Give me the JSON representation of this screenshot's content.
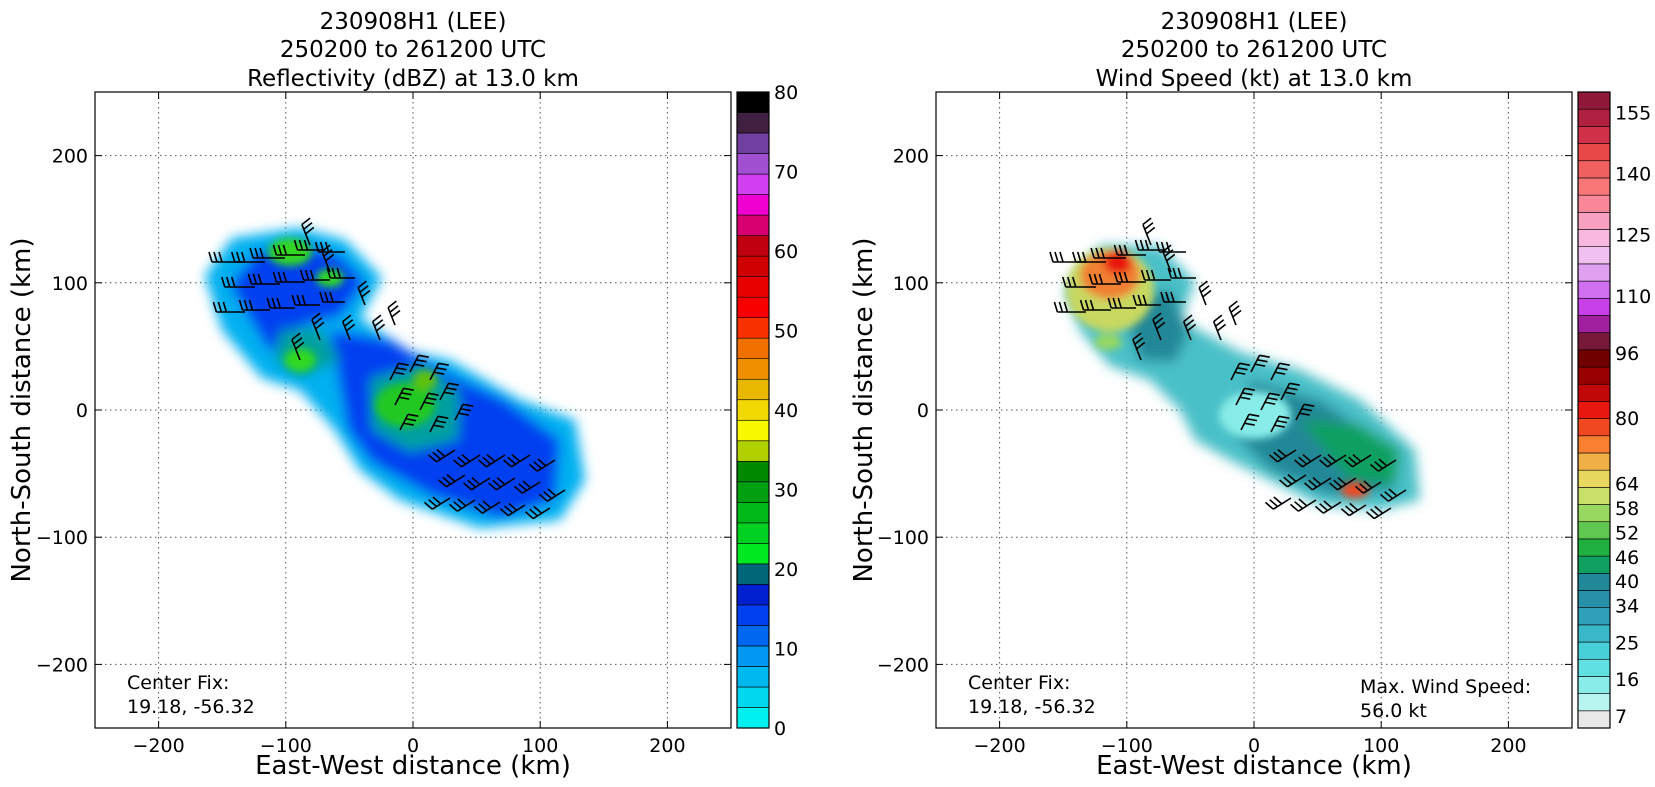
{
  "chart_data": [
    {
      "type": "heatmap",
      "title_lines": [
        "230908H1 (LEE)",
        "250200 to 261200 UTC",
        "Reflectivity (dBZ) at 13.0 km"
      ],
      "xlabel": "East-West distance (km)",
      "ylabel": "North-South distance (km)",
      "xlim": [
        -250,
        250
      ],
      "ylim": [
        -250,
        250
      ],
      "xticks": [
        -200,
        -100,
        0,
        100,
        200
      ],
      "yticks": [
        -200,
        -100,
        0,
        100,
        200
      ],
      "xtick_labels": [
        "−200",
        "−100",
        "0",
        "100",
        "200"
      ],
      "ytick_labels": [
        "−200",
        "−100",
        "0",
        "100",
        "200"
      ],
      "grid": true,
      "annotation_left_lines": [
        "Center Fix:",
        "19.18, -56.32"
      ],
      "annotation_right_lines": [],
      "colorbar": {
        "range": [
          0,
          80
        ],
        "tick_values": [
          0,
          10,
          20,
          30,
          40,
          50,
          60,
          70,
          80
        ],
        "tick_labels": [
          "0",
          "10",
          "20",
          "30",
          "40",
          "50",
          "60",
          "70",
          "80"
        ],
        "colors": [
          "#00f0f0",
          "#00d8f0",
          "#00b8f0",
          "#0098f0",
          "#0068f0",
          "#0040f0",
          "#0020d0",
          "#006878",
          "#00e820",
          "#00d020",
          "#00b818",
          "#00a010",
          "#008800",
          "#b0d000",
          "#f8f800",
          "#f0d800",
          "#e8b800",
          "#f09000",
          "#f07000",
          "#f83000",
          "#f80000",
          "#e80000",
          "#d00000",
          "#c00010",
          "#d80070",
          "#f000d0",
          "#d040f0",
          "#a050d0",
          "#7040a0",
          "#402040",
          "#000000"
        ]
      },
      "dominant_values_dBZ": [
        5,
        10,
        12,
        15,
        20,
        25
      ]
    },
    {
      "type": "heatmap",
      "title_lines": [
        "230908H1 (LEE)",
        "250200 to 261200 UTC",
        "Wind Speed (kt) at 13.0 km"
      ],
      "xlabel": "East-West distance (km)",
      "ylabel": "North-South distance (km)",
      "xlim": [
        -250,
        250
      ],
      "ylim": [
        -250,
        250
      ],
      "xticks": [
        -200,
        -100,
        0,
        100,
        200
      ],
      "yticks": [
        -200,
        -100,
        0,
        100,
        200
      ],
      "xtick_labels": [
        "−200",
        "−100",
        "0",
        "100",
        "200"
      ],
      "ytick_labels": [
        "−200",
        "−100",
        "0",
        "100",
        "200"
      ],
      "grid": true,
      "annotation_left_lines": [
        "Center Fix:",
        "19.18, -56.32"
      ],
      "annotation_right_lines": [
        "Max. Wind Speed:",
        "56.0 kt"
      ],
      "colorbar": {
        "range": [
          4,
          160
        ],
        "tick_values": [
          7,
          16,
          25,
          34,
          40,
          46,
          52,
          58,
          64,
          80,
          96,
          110,
          125,
          140,
          155
        ],
        "tick_labels": [
          "7",
          "16",
          "25",
          "34",
          "40",
          "46",
          "52",
          "58",
          "64",
          "80",
          "96",
          "110",
          "125",
          "140",
          "155"
        ],
        "colors": [
          "#e8e8e8",
          "#b8f4f0",
          "#88ece8",
          "#60e0e0",
          "#48d0d8",
          "#38b8c8",
          "#30a0b8",
          "#2890a8",
          "#208898",
          "#10a060",
          "#20b040",
          "#60c850",
          "#98d860",
          "#c8e068",
          "#e8d860",
          "#f0b048",
          "#f88030",
          "#f04820",
          "#e81810",
          "#c00808",
          "#980000",
          "#700000",
          "#781838",
          "#a020a0",
          "#c840e8",
          "#d070f0",
          "#e0a0f0",
          "#f0c0f0",
          "#f8b8e0",
          "#f8a0c0",
          "#f88898",
          "#f87878",
          "#f06060",
          "#e84848",
          "#d03048",
          "#b02040",
          "#901838"
        ]
      },
      "max_wind_kt": 56.0,
      "dominant_values_kt": [
        20,
        25,
        30,
        40,
        50
      ]
    }
  ]
}
